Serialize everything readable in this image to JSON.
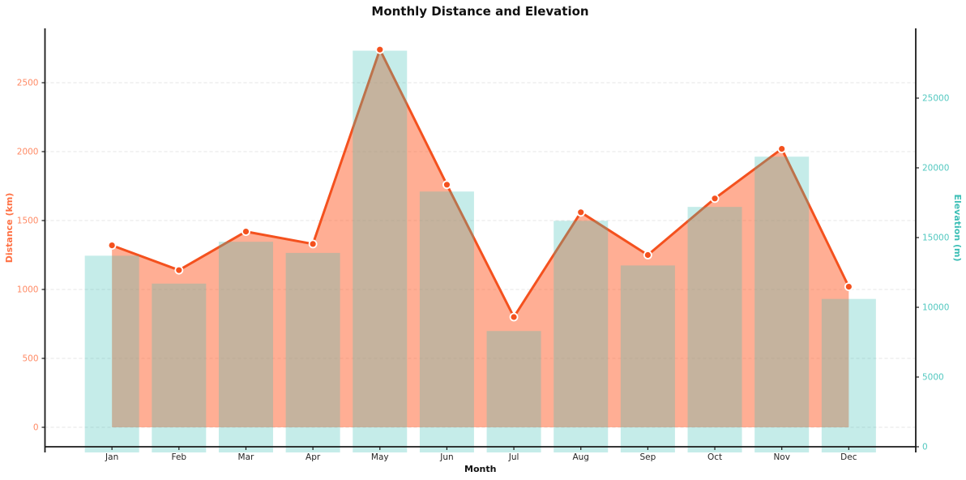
{
  "chart_data": {
    "type": "bar",
    "title": "Monthly Distance and Elevation",
    "xlabel": "Month",
    "categories": [
      "Jan",
      "Feb",
      "Mar",
      "Apr",
      "May",
      "Jun",
      "Jul",
      "Aug",
      "Sep",
      "Oct",
      "Nov",
      "Dec"
    ],
    "series": [
      {
        "name": "Distance (km)",
        "render_as": "area-line-markers",
        "axis": "left",
        "values": [
          1320,
          1140,
          1420,
          1330,
          2740,
          1760,
          800,
          1560,
          1250,
          1660,
          2020,
          1020
        ]
      },
      {
        "name": "Elevation (m)",
        "render_as": "bar",
        "axis": "right",
        "values": [
          13700,
          11700,
          14700,
          13900,
          28400,
          18300,
          8300,
          16200,
          13000,
          17200,
          20800,
          10600
        ]
      }
    ],
    "left_axis": {
      "label": "Distance (km)",
      "ticks": [
        0,
        500,
        1000,
        1500,
        2000,
        2500
      ],
      "range": [
        0,
        2900
      ],
      "label_color": "#FF7043",
      "tick_color": "#FF8A65"
    },
    "right_axis": {
      "label": "Elevation (m)",
      "ticks": [
        0,
        5000,
        10000,
        15000,
        20000,
        25000
      ],
      "range": [
        0,
        30000
      ],
      "label_color": "#3DBFB6",
      "tick_color": "#52C8C0"
    },
    "x_axis": {
      "label": "Month",
      "tick_color": "#262626",
      "label_color": "#111111"
    },
    "grid": {
      "horizontal": true,
      "style": "dashed",
      "color": "#e4e4e4"
    },
    "legend_position": "none",
    "colors": {
      "line": "#F4511E",
      "area_fill": "rgba(255,112,67,0.57)",
      "bar_fill": "rgba(62,192,182,0.30)",
      "marker_fill": "#F4511E",
      "marker_edge": "#FFFFFF",
      "spine": "#1a1a1a",
      "title": "#111111"
    }
  }
}
